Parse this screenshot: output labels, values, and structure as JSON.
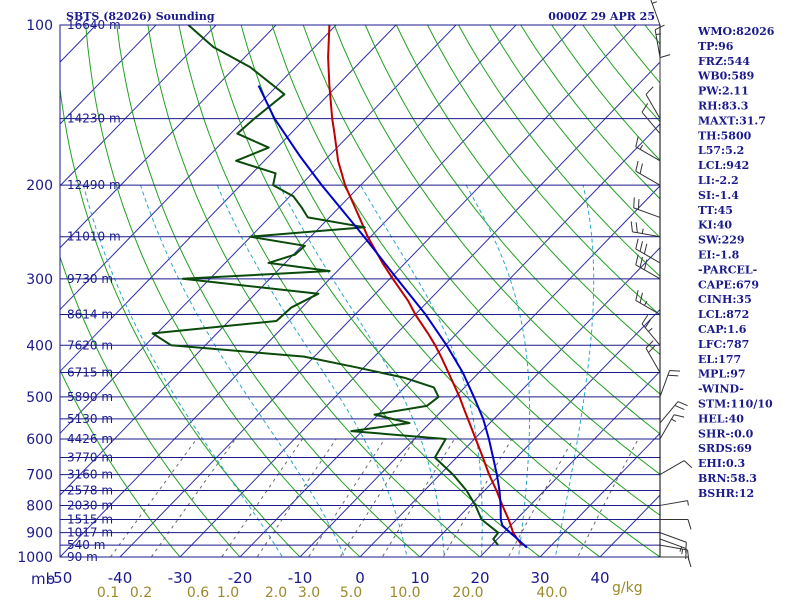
{
  "header": {
    "station": "SBTS (82026) Sounding",
    "time": "0000Z 29 APR 25"
  },
  "axes": {
    "pressure_unit": "mb",
    "mixing_ratio_unit": "g/kg"
  },
  "colors": {
    "frame": "#1a1a8c",
    "isobar": "#1a1a8c",
    "isotherm": "#2f2fa8",
    "dry_adiabat": "#22a022",
    "moist_adiabat": "#2aa7c9",
    "mixing_ratio": "#6a6a6a",
    "temperature": "#c00000",
    "dewpoint": "#0a4a0a",
    "parcel": "#0000c8",
    "wind": "#333333",
    "index_text": "#1a1a8c"
  },
  "chart_data": {
    "type": "line",
    "title": "SBTS (82026) Sounding",
    "subtitle": "0000Z 29 APR 25",
    "ylabel": "mb",
    "y_scale": "log",
    "ylim": [
      1000,
      100
    ],
    "xlim_surface_temp_c": [
      -50,
      50
    ],
    "pressure_ticks": [
      100,
      200,
      300,
      400,
      500,
      600,
      700,
      800,
      900,
      1000
    ],
    "temperature_ticks": [
      -50,
      -40,
      -30,
      -20,
      -10,
      0,
      10,
      20,
      30,
      40
    ],
    "temperature_tick_labels": [
      "-50",
      "-40",
      "-30",
      "-20",
      "-10",
      "0",
      "10",
      "20",
      "30",
      "40"
    ],
    "mixing_ratio_ticks": [
      {
        "label": "0.1",
        "t": -42
      },
      {
        "label": "0.2",
        "t": -36.5
      },
      {
        "label": "0.6",
        "t": -27
      },
      {
        "label": "1.0",
        "t": -22
      },
      {
        "label": "2.0",
        "t": -14
      },
      {
        "label": "3.0",
        "t": -8.5
      },
      {
        "label": "5.0",
        "t": -1.5
      },
      {
        "label": "10.0",
        "t": 7.5
      },
      {
        "label": "20.0",
        "t": 18
      },
      {
        "label": "40.0",
        "t": 32
      }
    ],
    "height_labels": [
      {
        "p": 100,
        "label": "16640 m"
      },
      {
        "p": 150,
        "label": "14230 m"
      },
      {
        "p": 200,
        "label": "12490 m"
      },
      {
        "p": 250,
        "label": "11010 m"
      },
      {
        "p": 300,
        "label": "9730 m"
      },
      {
        "p": 350,
        "label": "8614 m"
      },
      {
        "p": 400,
        "label": "7620 m"
      },
      {
        "p": 450,
        "label": "6715 m"
      },
      {
        "p": 500,
        "label": "5890 m"
      },
      {
        "p": 550,
        "label": "5130 m"
      },
      {
        "p": 600,
        "label": "4426 m"
      },
      {
        "p": 650,
        "label": "3770 m"
      },
      {
        "p": 700,
        "label": "3160 m"
      },
      {
        "p": 750,
        "label": "2578 m"
      },
      {
        "p": 800,
        "label": "2030 m"
      },
      {
        "p": 850,
        "label": "1515 m"
      },
      {
        "p": 900,
        "label": "1017 m"
      },
      {
        "p": 950,
        "label": "540 m"
      },
      {
        "p": 1000,
        "label": "90 m"
      }
    ],
    "series": [
      {
        "name": "Temperature",
        "p": [
          950,
          925,
          900,
          850,
          800,
          750,
          700,
          650,
          600,
          560,
          530,
          500,
          470,
          450,
          420,
          400,
          380,
          350,
          330,
          300,
          280,
          250,
          230,
          200,
          180,
          160,
          150,
          130,
          115,
          100
        ],
        "t": [
          25.1,
          23.3,
          21.6,
          18.7,
          15.4,
          12.0,
          8.2,
          4.4,
          0.2,
          -3.4,
          -6.3,
          -9.3,
          -12.7,
          -15.1,
          -18.9,
          -21.7,
          -24.8,
          -30.0,
          -33.4,
          -39.5,
          -43.8,
          -50.5,
          -55.0,
          -62.6,
          -67.7,
          -72.7,
          -75.5,
          -81.3,
          -86.1,
          -91.1
        ]
      },
      {
        "name": "Dewpoint",
        "p": [
          950,
          925,
          900,
          850,
          800,
          750,
          700,
          650,
          600,
          580,
          560,
          540,
          520,
          500,
          480,
          460,
          440,
          420,
          400,
          380,
          360,
          340,
          320,
          300,
          290,
          280,
          270,
          260,
          250,
          240,
          230,
          220,
          210,
          200,
          190,
          180,
          170,
          160,
          150,
          135,
          120,
          110,
          100
        ],
        "t": [
          21.1,
          19.3,
          19.1,
          14.2,
          10.9,
          7.0,
          2.2,
          -3.6,
          -4.8,
          -21.8,
          -13.4,
          -20.6,
          -13.3,
          -12.8,
          -15.1,
          -21.7,
          -31.3,
          -41.7,
          -65.7,
          -70.7,
          -52.1,
          -51.8,
          -49.5,
          -74.5,
          -51.3,
          -62.8,
          -59.7,
          -59.5,
          -70.1,
          -52.5,
          -63.6,
          -66.3,
          -69.4,
          -74.6,
          -76.1,
          -84.7,
          -81.4,
          -88.9,
          -88.5,
          -87.4,
          -97.5,
          -106.9,
          -114.6
        ]
      },
      {
        "name": "Parcel",
        "p": [
          960,
          940,
          920,
          900,
          872,
          850,
          800,
          750,
          700,
          650,
          600,
          550,
          500,
          450,
          400,
          350,
          300,
          250,
          200,
          177,
          150,
          130
        ],
        "t": [
          26.3,
          24.6,
          22.9,
          21.1,
          18.6,
          17.4,
          15.1,
          12.5,
          9.5,
          6.1,
          2.4,
          -1.8,
          -6.9,
          -12.7,
          -19.8,
          -28.3,
          -38.8,
          -51.1,
          -66.5,
          -74.6,
          -85.1,
          -93.1
        ]
      }
    ],
    "winds": [
      {
        "p": 1000,
        "dir": 90,
        "spd": 10
      },
      {
        "p": 950,
        "dir": 100,
        "spd": 15
      },
      {
        "p": 925,
        "dir": 110,
        "spd": 15
      },
      {
        "p": 900,
        "dir": 110,
        "spd": 10
      },
      {
        "p": 850,
        "dir": 90,
        "spd": 10
      },
      {
        "p": 800,
        "dir": 80,
        "spd": 5
      },
      {
        "p": 700,
        "dir": 60,
        "spd": 10
      },
      {
        "p": 600,
        "dir": 30,
        "spd": 15
      },
      {
        "p": 560,
        "dir": 40,
        "spd": 20
      },
      {
        "p": 500,
        "dir": 20,
        "spd": 20
      },
      {
        "p": 450,
        "dir": 330,
        "spd": 20
      },
      {
        "p": 400,
        "dir": 320,
        "spd": 25
      },
      {
        "p": 350,
        "dir": 300,
        "spd": 25
      },
      {
        "p": 300,
        "dir": 300,
        "spd": 30
      },
      {
        "p": 280,
        "dir": 300,
        "spd": 30
      },
      {
        "p": 250,
        "dir": 280,
        "spd": 25
      },
      {
        "p": 230,
        "dir": 290,
        "spd": 20
      },
      {
        "p": 200,
        "dir": 300,
        "spd": 20
      },
      {
        "p": 180,
        "dir": 300,
        "spd": 15
      },
      {
        "p": 160,
        "dir": 320,
        "spd": 10
      },
      {
        "p": 150,
        "dir": 330,
        "spd": 10
      },
      {
        "p": 130,
        "dir": 360,
        "spd": 10
      },
      {
        "p": 115,
        "dir": 350,
        "spd": 15
      },
      {
        "p": 100,
        "dir": 340,
        "spd": 15
      }
    ]
  },
  "indices": [
    "WMO:82026",
    "TP:96",
    "FRZ:544",
    "WB0:589",
    "PW:2.11",
    "RH:83.3",
    "MAXT:31.7",
    "TH:5800",
    "L57:5.2",
    "LCL:942",
    "LI:-2.2",
    "SI:-1.4",
    "TT:45",
    "KI:40",
    "SW:229",
    "EI:-1.8",
    "-PARCEL-",
    "CAPE:679",
    "CINH:35",
    "LCL:872",
    "CAP:1.6",
    "LFC:787",
    "EL:177",
    "MPL:97",
    "-WIND-",
    "STM:110/10",
    "HEL:40",
    "SHR-:0.0",
    "SRDS:69",
    "EHI:0.3",
    "BRN:58.3",
    "BSHR:12"
  ]
}
